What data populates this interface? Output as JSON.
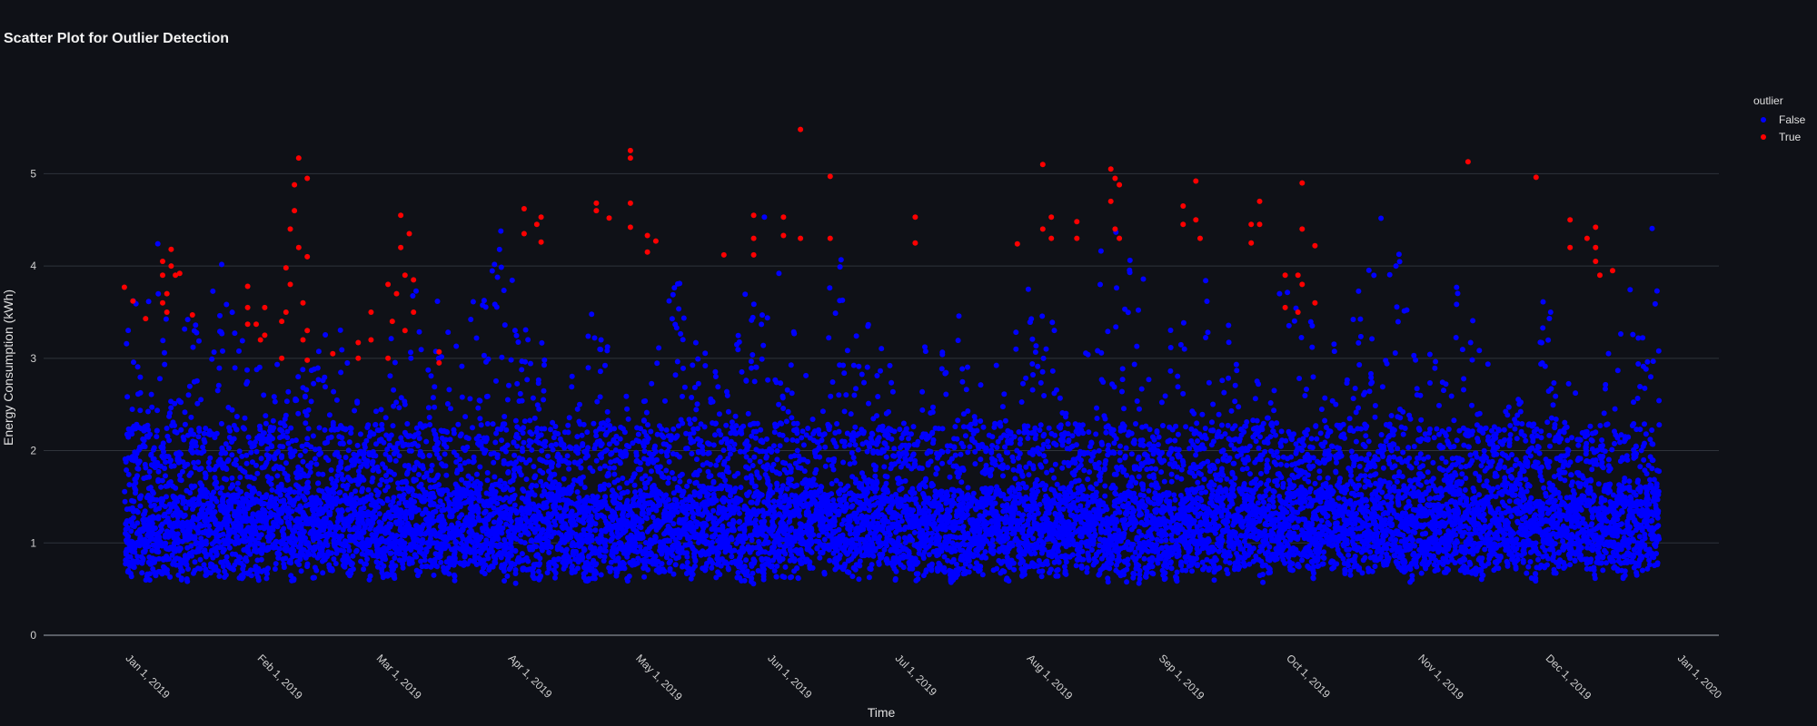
{
  "title": "Scatter Plot for Outlier Detection",
  "legend": {
    "title": "outlier",
    "items": [
      {
        "label": "False",
        "color": "#0000ff"
      },
      {
        "label": "True",
        "color": "#ff0000"
      }
    ]
  },
  "chart_data": {
    "type": "scatter",
    "title": "Scatter Plot for Outlier Detection",
    "xlabel": "Time",
    "ylabel": "Energy Consumption (kWh)",
    "xlim": [
      "2018-12-12",
      "2020-01-10"
    ],
    "ylim": [
      0,
      5.8
    ],
    "yticks": [
      0,
      1,
      2,
      3,
      4,
      5
    ],
    "xticks": [
      "Jan 1, 2019",
      "Feb 1, 2019",
      "Mar 1, 2019",
      "Apr 1, 2019",
      "May 1, 2019",
      "Jun 1, 2019",
      "Jul 1, 2019",
      "Aug 1, 2019",
      "Sep 1, 2019",
      "Oct 1, 2019",
      "Nov 1, 2019",
      "Dec 1, 2019",
      "Jan 1, 2020"
    ],
    "xtick_dates": [
      "2019-01-01",
      "2019-02-01",
      "2019-03-01",
      "2019-04-01",
      "2019-05-01",
      "2019-06-01",
      "2019-07-01",
      "2019-08-01",
      "2019-09-01",
      "2019-10-01",
      "2019-11-01",
      "2019-12-01",
      "2020-01-01"
    ],
    "grid": true,
    "legend_position": "top-right",
    "series": [
      {
        "name": "False",
        "color": "#0000ff",
        "x_range": [
          "2018-12-31",
          "2019-12-26"
        ],
        "y_range": [
          0.3,
          4.8
        ],
        "note": "dense bulk of hourly readings, mostly between 0.5 and 2.5 kWh"
      },
      {
        "name": "True",
        "color": "#ff0000",
        "points": [
          [
            "2018-12-31",
            3.77
          ],
          [
            "2019-01-02",
            3.62
          ],
          [
            "2019-01-05",
            3.43
          ],
          [
            "2019-01-09",
            4.05
          ],
          [
            "2019-01-09",
            3.9
          ],
          [
            "2019-01-09",
            3.6
          ],
          [
            "2019-01-10",
            3.7
          ],
          [
            "2019-01-10",
            3.5
          ],
          [
            "2019-01-11",
            4.18
          ],
          [
            "2019-01-11",
            4.0
          ],
          [
            "2019-01-12",
            3.9
          ],
          [
            "2019-01-13",
            3.92
          ],
          [
            "2019-01-16",
            3.47
          ],
          [
            "2019-01-29",
            3.78
          ],
          [
            "2019-01-29",
            3.55
          ],
          [
            "2019-01-29",
            3.37
          ],
          [
            "2019-01-31",
            3.37
          ],
          [
            "2019-02-01",
            3.2
          ],
          [
            "2019-02-02",
            3.55
          ],
          [
            "2019-02-02",
            3.25
          ],
          [
            "2019-02-06",
            3.4
          ],
          [
            "2019-02-06",
            3.0
          ],
          [
            "2019-02-07",
            3.98
          ],
          [
            "2019-02-07",
            3.5
          ],
          [
            "2019-02-08",
            4.4
          ],
          [
            "2019-02-08",
            3.8
          ],
          [
            "2019-02-09",
            4.88
          ],
          [
            "2019-02-09",
            4.6
          ],
          [
            "2019-02-10",
            5.17
          ],
          [
            "2019-02-10",
            4.2
          ],
          [
            "2019-02-11",
            3.6
          ],
          [
            "2019-02-11",
            3.2
          ],
          [
            "2019-02-12",
            4.95
          ],
          [
            "2019-02-12",
            4.1
          ],
          [
            "2019-02-12",
            3.3
          ],
          [
            "2019-02-12",
            2.98
          ],
          [
            "2019-02-18",
            3.05
          ],
          [
            "2019-02-24",
            3.17
          ],
          [
            "2019-02-24",
            3.0
          ],
          [
            "2019-02-27",
            3.5
          ],
          [
            "2019-02-27",
            3.2
          ],
          [
            "2019-03-03",
            3.8
          ],
          [
            "2019-03-03",
            3.0
          ],
          [
            "2019-03-04",
            3.4
          ],
          [
            "2019-03-05",
            3.7
          ],
          [
            "2019-03-06",
            4.55
          ],
          [
            "2019-03-06",
            4.2
          ],
          [
            "2019-03-07",
            3.9
          ],
          [
            "2019-03-07",
            3.3
          ],
          [
            "2019-03-08",
            4.35
          ],
          [
            "2019-03-09",
            3.85
          ],
          [
            "2019-03-09",
            3.5
          ],
          [
            "2019-03-15",
            3.07
          ],
          [
            "2019-03-15",
            2.95
          ],
          [
            "2019-04-04",
            4.62
          ],
          [
            "2019-04-04",
            4.35
          ],
          [
            "2019-04-07",
            4.45
          ],
          [
            "2019-04-08",
            4.26
          ],
          [
            "2019-04-08",
            4.53
          ],
          [
            "2019-04-21",
            4.68
          ],
          [
            "2019-04-21",
            4.6
          ],
          [
            "2019-04-24",
            4.52
          ],
          [
            "2019-04-29",
            5.25
          ],
          [
            "2019-04-29",
            5.17
          ],
          [
            "2019-04-29",
            4.68
          ],
          [
            "2019-04-29",
            4.42
          ],
          [
            "2019-05-03",
            4.15
          ],
          [
            "2019-05-03",
            4.33
          ],
          [
            "2019-05-05",
            4.27
          ],
          [
            "2019-05-21",
            4.12
          ],
          [
            "2019-05-28",
            4.55
          ],
          [
            "2019-05-28",
            4.3
          ],
          [
            "2019-05-28",
            4.12
          ],
          [
            "2019-06-04",
            4.53
          ],
          [
            "2019-06-04",
            4.33
          ],
          [
            "2019-06-08",
            4.3
          ],
          [
            "2019-06-08",
            5.48
          ],
          [
            "2019-06-15",
            4.97
          ],
          [
            "2019-06-15",
            4.3
          ],
          [
            "2019-07-05",
            4.53
          ],
          [
            "2019-07-05",
            4.25
          ],
          [
            "2019-07-29",
            4.24
          ],
          [
            "2019-08-04",
            5.1
          ],
          [
            "2019-08-04",
            4.4
          ],
          [
            "2019-08-06",
            4.53
          ],
          [
            "2019-08-06",
            4.3
          ],
          [
            "2019-08-12",
            4.48
          ],
          [
            "2019-08-12",
            4.3
          ],
          [
            "2019-08-20",
            5.05
          ],
          [
            "2019-08-20",
            4.7
          ],
          [
            "2019-08-21",
            4.95
          ],
          [
            "2019-08-21",
            4.4
          ],
          [
            "2019-08-22",
            4.88
          ],
          [
            "2019-08-22",
            4.3
          ],
          [
            "2019-09-06",
            4.65
          ],
          [
            "2019-09-06",
            4.45
          ],
          [
            "2019-09-09",
            4.92
          ],
          [
            "2019-09-09",
            4.5
          ],
          [
            "2019-09-10",
            4.3
          ],
          [
            "2019-09-22",
            4.45
          ],
          [
            "2019-09-22",
            4.25
          ],
          [
            "2019-09-24",
            4.7
          ],
          [
            "2019-09-24",
            4.45
          ],
          [
            "2019-09-30",
            3.9
          ],
          [
            "2019-09-30",
            3.55
          ],
          [
            "2019-10-03",
            3.9
          ],
          [
            "2019-10-03",
            3.5
          ],
          [
            "2019-10-04",
            4.9
          ],
          [
            "2019-10-04",
            4.4
          ],
          [
            "2019-10-04",
            3.8
          ],
          [
            "2019-10-07",
            4.22
          ],
          [
            "2019-10-07",
            3.6
          ],
          [
            "2019-11-12",
            5.13
          ],
          [
            "2019-11-28",
            4.96
          ],
          [
            "2019-12-06",
            4.5
          ],
          [
            "2019-12-06",
            4.2
          ],
          [
            "2019-12-10",
            4.3
          ],
          [
            "2019-12-12",
            4.42
          ],
          [
            "2019-12-12",
            4.2
          ],
          [
            "2019-12-12",
            4.05
          ],
          [
            "2019-12-13",
            3.9
          ],
          [
            "2019-12-16",
            3.95
          ]
        ]
      }
    ]
  }
}
